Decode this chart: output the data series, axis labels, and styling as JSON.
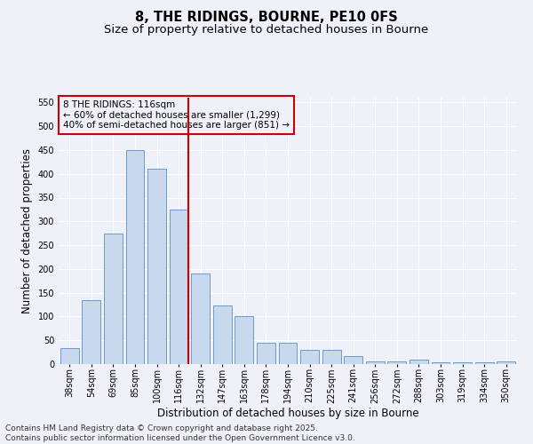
{
  "title": "8, THE RIDINGS, BOURNE, PE10 0FS",
  "subtitle": "Size of property relative to detached houses in Bourne",
  "xlabel": "Distribution of detached houses by size in Bourne",
  "ylabel": "Number of detached properties",
  "categories": [
    "38sqm",
    "54sqm",
    "69sqm",
    "85sqm",
    "100sqm",
    "116sqm",
    "132sqm",
    "147sqm",
    "163sqm",
    "178sqm",
    "194sqm",
    "210sqm",
    "225sqm",
    "241sqm",
    "256sqm",
    "272sqm",
    "288sqm",
    "303sqm",
    "319sqm",
    "334sqm",
    "350sqm"
  ],
  "values": [
    33,
    135,
    275,
    450,
    410,
    325,
    190,
    123,
    101,
    44,
    44,
    29,
    29,
    16,
    6,
    6,
    9,
    3,
    3,
    3,
    6
  ],
  "bar_color": "#c8d8ed",
  "bar_edge_color": "#5b8ec4",
  "marker_index": 5,
  "marker_color": "#cc0000",
  "annotation_line1": "8 THE RIDINGS: 116sqm",
  "annotation_line2": "← 60% of detached houses are smaller (1,299)",
  "annotation_line3": "40% of semi-detached houses are larger (851) →",
  "annotation_box_color": "#cc0000",
  "ylim": [
    0,
    560
  ],
  "yticks": [
    0,
    50,
    100,
    150,
    200,
    250,
    300,
    350,
    400,
    450,
    500,
    550
  ],
  "background_color": "#eef2f8",
  "grid_color": "#ffffff",
  "footer_text": "Contains HM Land Registry data © Crown copyright and database right 2025.\nContains public sector information licensed under the Open Government Licence v3.0.",
  "title_fontsize": 10.5,
  "subtitle_fontsize": 9.5,
  "axis_label_fontsize": 8.5,
  "tick_fontsize": 7,
  "annotation_fontsize": 7.5,
  "footer_fontsize": 6.5
}
